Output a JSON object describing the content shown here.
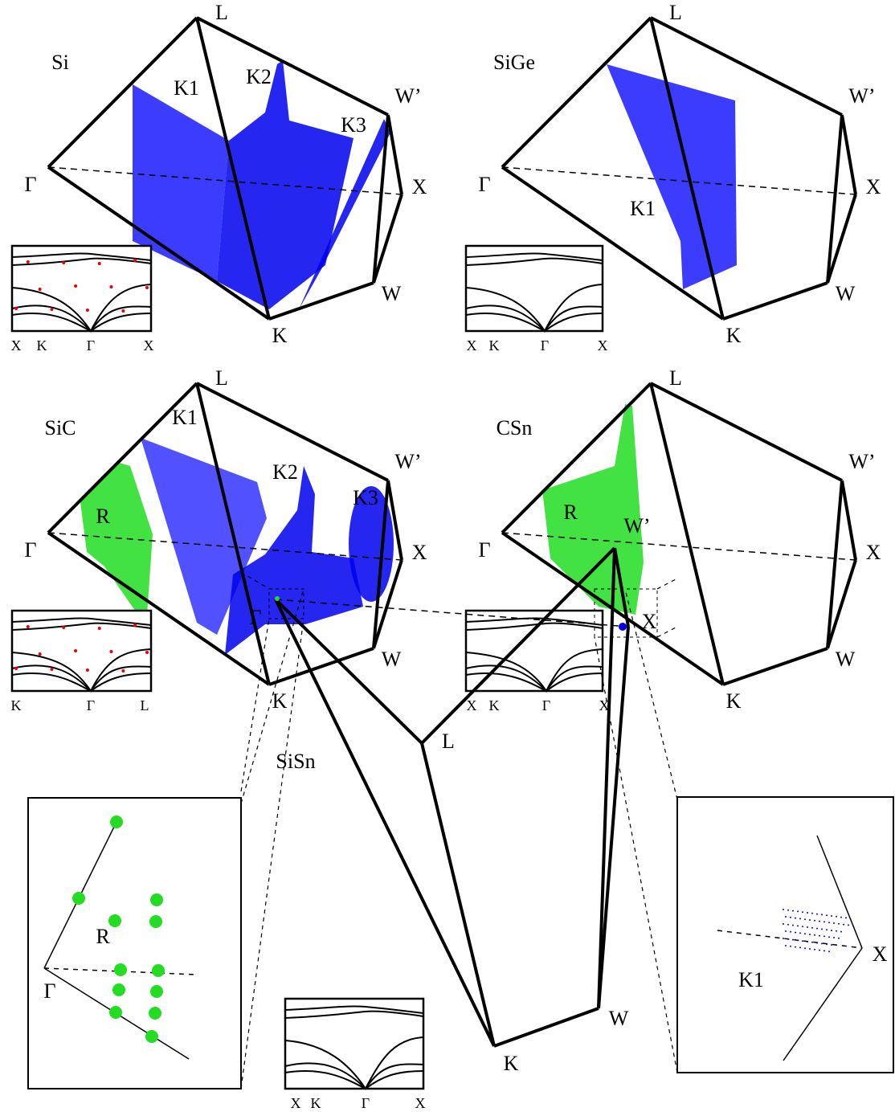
{
  "panels": [
    {
      "name": "Si",
      "vertices": [
        "L",
        "W’",
        "X",
        "W",
        "K",
        "Γ"
      ],
      "regions": [
        "K1",
        "K2",
        "K3"
      ],
      "inset_axis": [
        "X",
        "K",
        "Γ",
        "X"
      ]
    },
    {
      "name": "SiGe",
      "vertices": [
        "L",
        "W’",
        "X",
        "W",
        "K",
        "Γ"
      ],
      "regions": [
        "K1"
      ],
      "inset_axis": [
        "X",
        "K",
        "Γ",
        "X"
      ]
    },
    {
      "name": "SiC",
      "vertices": [
        "L",
        "W’",
        "X",
        "W",
        "K",
        "Γ"
      ],
      "regions": [
        "K1",
        "K2",
        "K3",
        "R"
      ],
      "inset_axis": [
        "K",
        "Γ",
        "L"
      ]
    },
    {
      "name": "CSn",
      "vertices": [
        "L",
        "W’",
        "X",
        "W",
        "K",
        "Γ"
      ],
      "regions": [
        "R"
      ],
      "inset_axis": [
        "X",
        "K",
        "Γ",
        "X"
      ]
    },
    {
      "name": "SiSn",
      "vertices": [
        "L",
        "W’",
        "X",
        "W",
        "K",
        "Γ"
      ],
      "inset_axis": [
        "X",
        "K",
        "Γ",
        "X"
      ],
      "zoom_left": [
        "R",
        "Γ"
      ],
      "zoom_right": [
        "K1",
        "X"
      ]
    }
  ]
}
